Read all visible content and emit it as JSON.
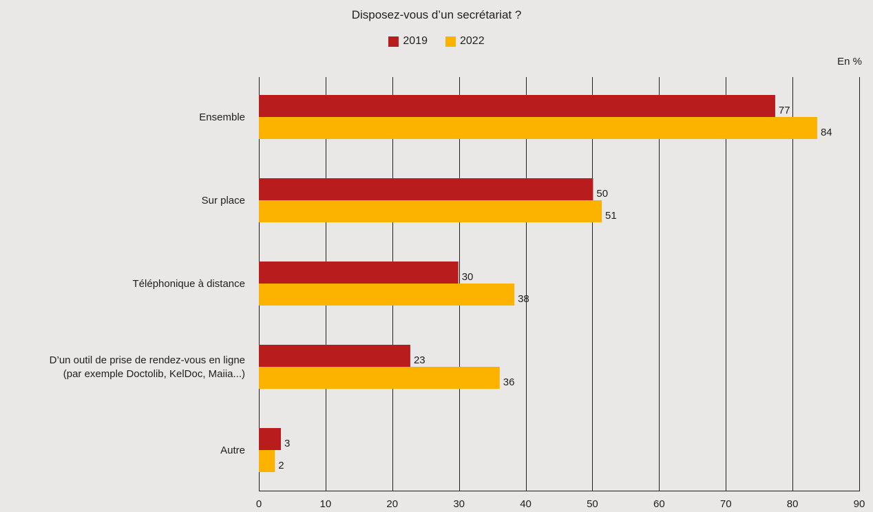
{
  "chart_data": {
    "type": "bar",
    "orientation": "horizontal",
    "title": "Disposez-vous d’un secrétariat ?",
    "unit": "En %",
    "categories": [
      [
        "Ensemble"
      ],
      [
        "Sur place"
      ],
      [
        "Téléphonique à distance"
      ],
      [
        "D’un outil de prise de rendez-vous en ligne",
        "(par exemple Doctolib, KelDoc, Maiia...)"
      ],
      [
        "Autre"
      ]
    ],
    "series": [
      {
        "name": "2019",
        "color": "#b81c1c",
        "values": [
          77.4,
          50.1,
          29.9,
          22.7,
          3.3
        ],
        "labels": [
          "77",
          "50",
          "30",
          "23",
          "3"
        ]
      },
      {
        "name": "2022",
        "color": "#fbb300",
        "values": [
          83.7,
          51.4,
          38.3,
          36.1,
          2.4
        ],
        "labels": [
          "84",
          "51",
          "38",
          "36",
          "2"
        ]
      }
    ],
    "xlim": [
      0,
      90
    ],
    "xticks": [
      0,
      10,
      20,
      30,
      40,
      50,
      60,
      70,
      80,
      90
    ],
    "grid": true,
    "legend_position": "top-center"
  }
}
